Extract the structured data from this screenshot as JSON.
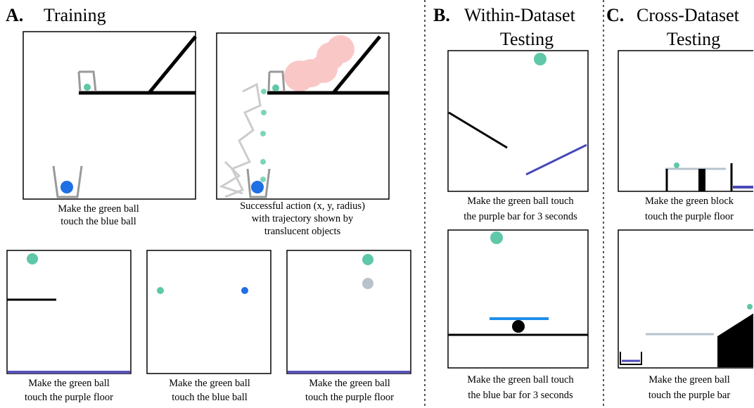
{
  "panels": [
    {
      "letter": "A.",
      "title": [
        "Training"
      ],
      "captions": [
        [
          "Make the green ball",
          "touch the blue ball"
        ],
        [
          "Successful action (x, y, radius)",
          "with trajectory shown by",
          "translucent objects"
        ],
        [
          "Make the green ball",
          "touch the purple floor"
        ],
        [
          "Make the green ball",
          "touch the blue ball"
        ],
        [
          "Make the green ball",
          "touch  the purple floor"
        ]
      ]
    },
    {
      "letter": "B.",
      "title": [
        "Within-Dataset",
        "Testing"
      ],
      "captions": [
        [
          "Make the green ball touch",
          "the purple bar for 3 seconds"
        ],
        [
          "Make the green ball touch",
          "the blue bar for 3 seconds"
        ]
      ]
    },
    {
      "letter": "C.",
      "title": [
        "Cross-Dataset",
        "Testing"
      ],
      "captions": [
        [
          "Make the green block",
          "touch the purple floor"
        ],
        [
          "Make the green ball",
          "touch the purple bar"
        ]
      ]
    }
  ]
}
